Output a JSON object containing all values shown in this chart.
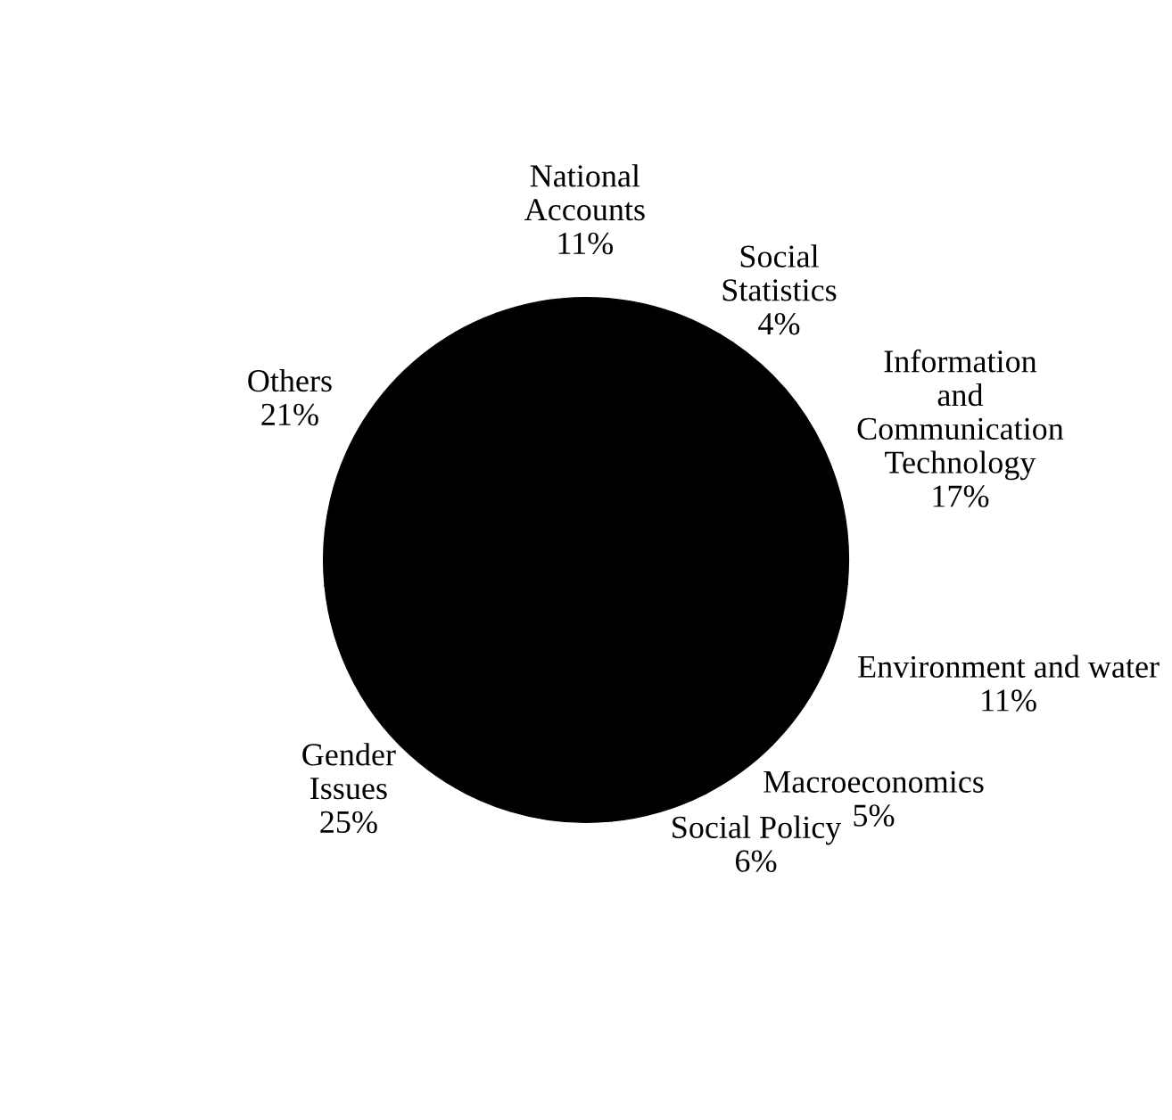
{
  "chart_data": {
    "type": "pie",
    "categories": [
      "National\nAccounts",
      "Social\nStatistics",
      "Information\nand\nCommunication\nTechnology",
      "Environment and water",
      "Macroeconomics",
      "Social Policy",
      "Gender\nIssues",
      "Others"
    ],
    "values": [
      11,
      4,
      17,
      11,
      5,
      6,
      25,
      21
    ],
    "value_labels": [
      "11%",
      "4%",
      "17%",
      "11%",
      "5%",
      "6%",
      "25%",
      "21%"
    ],
    "colors": [
      "#000000",
      "#000000",
      "#000000",
      "#000000",
      "#000000",
      "#000000",
      "#000000",
      "#000000"
    ]
  }
}
